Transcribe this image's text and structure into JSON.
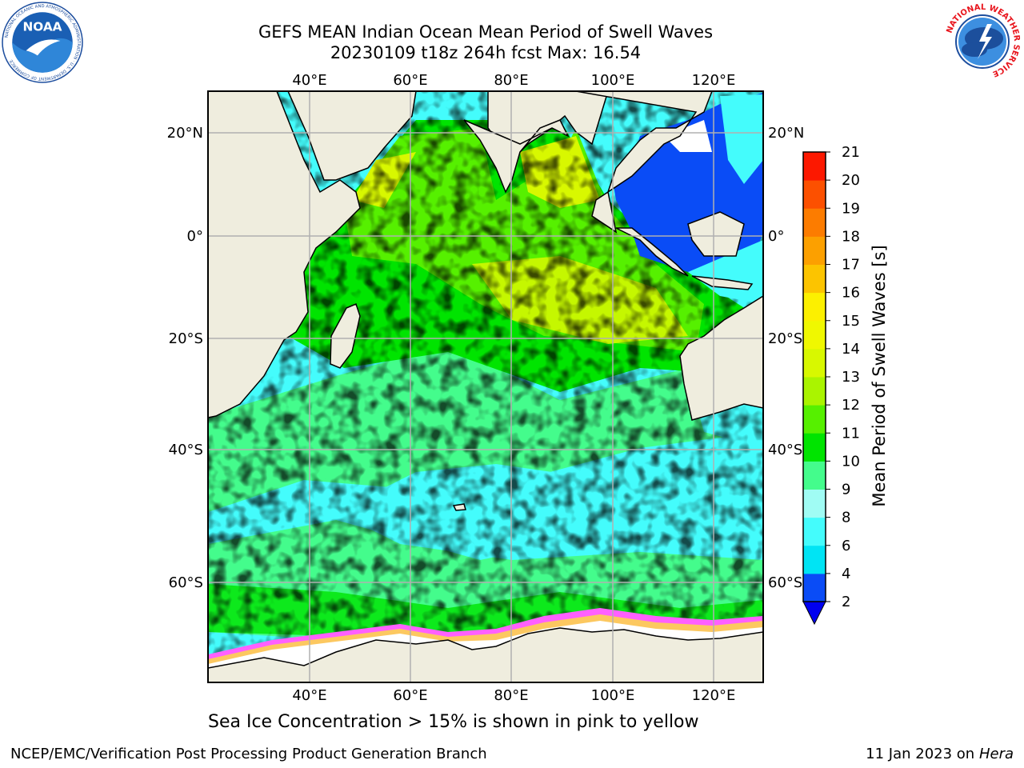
{
  "header": {
    "title_line1": "GEFS MEAN Indian Ocean Mean Period of Swell Waves",
    "title_line2": "20230109 t18z 264h fcst   Max: 16.54"
  },
  "logos": {
    "left": {
      "name": "NOAA",
      "ring_text": "NATIONAL OCEANIC AND ATMOSPHERIC ADMINISTRATION · U.S. DEPARTMENT OF COMMERCE"
    },
    "right": {
      "name": "NATIONAL WEATHER SERVICE"
    }
  },
  "map": {
    "lon_range": [
      20,
      130
    ],
    "lat_range": [
      -74,
      28
    ],
    "lon_ticks": [
      "40°E",
      "60°E",
      "80°E",
      "100°E",
      "120°E"
    ],
    "lat_ticks": [
      "20°N",
      "0°",
      "20°S",
      "40°S",
      "60°S"
    ],
    "land_color": "#efedde",
    "grid_color": "#b0b0b0"
  },
  "colorbar": {
    "label": "Mean Period of Swell Waves [s]",
    "ticks": [
      "2",
      "4",
      "6",
      "8",
      "9",
      "10",
      "11",
      "12",
      "13",
      "14",
      "15",
      "16",
      "17",
      "18",
      "19",
      "20",
      "21"
    ],
    "colors": [
      "#0a4cf6",
      "#00e4f4",
      "#44fcfc",
      "#a0fcf4",
      "#44fc8c",
      "#00e400",
      "#56f000",
      "#aaf400",
      "#d8f800",
      "#f0f800",
      "#fcf000",
      "#fcc400",
      "#fca000",
      "#fc7c00",
      "#fc5000",
      "#fc1800"
    ],
    "under_color": "#0000f0"
  },
  "footer": {
    "note": "Sea Ice Concentration > 15% is shown in pink to yellow",
    "credit": "NCEP/EMC/Verification Post Processing Product Generation Branch",
    "date": "11 Jan 2023 on ",
    "machine": "Hera"
  }
}
